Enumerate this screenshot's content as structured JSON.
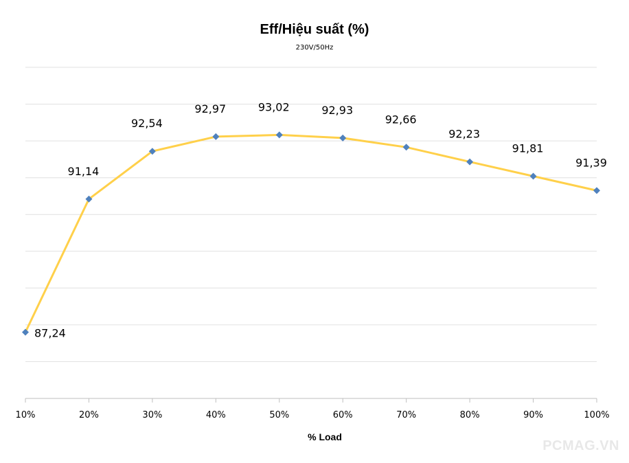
{
  "chart_data": {
    "type": "line",
    "title": "Eff/Hiệu suất (%)",
    "subtitle": "230V/50Hz",
    "xlabel": "% Load",
    "ylabel": "",
    "categories": [
      "10%",
      "20%",
      "30%",
      "40%",
      "50%",
      "60%",
      "70%",
      "80%",
      "90%",
      "100%"
    ],
    "values": [
      87.24,
      91.14,
      92.54,
      92.97,
      93.02,
      92.93,
      92.66,
      92.23,
      91.81,
      91.39
    ],
    "data_labels": [
      "87,24",
      "91,14",
      "92,54",
      "92,97",
      "93,02",
      "92,93",
      "92,66",
      "92,23",
      "91,81",
      "91,39"
    ],
    "ylim": [
      85.3,
      95.0
    ],
    "grid": true,
    "legend": "none",
    "colors": {
      "line": "#FFD04A",
      "marker": "#4F81BD",
      "grid": "#e0e0e0"
    }
  },
  "watermark": "PCMAG.VN"
}
